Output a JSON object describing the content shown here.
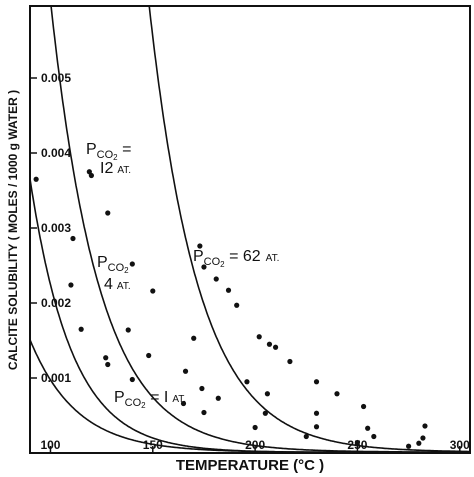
{
  "chart_data": {
    "type": "scatter",
    "title": "",
    "xlabel": "TEMPERATURE (°C )",
    "ylabel": "CALCITE SOLUBILITY ( MOLES / 1000 g WATER )",
    "xlim": [
      90,
      305
    ],
    "ylim": [
      0,
      0.00596
    ],
    "x_ticks": [
      {
        "value": 100,
        "label": "100"
      },
      {
        "value": 150,
        "label": "150"
      },
      {
        "value": 200,
        "label": "200"
      },
      {
        "value": 250,
        "label": "250"
      },
      {
        "value": 300,
        "label": "300"
      }
    ],
    "y_ticks": [
      {
        "value": 0.001,
        "label": "0.001"
      },
      {
        "value": 0.002,
        "label": "0.002"
      },
      {
        "value": 0.003,
        "label": "0.003"
      },
      {
        "value": 0.004,
        "label": "0.004"
      },
      {
        "value": 0.005,
        "label": "0.005"
      }
    ],
    "grid": false,
    "series": [
      {
        "id": "p1",
        "label": {
          "p": "P",
          "sub": "CO",
          "sub2": "2",
          "rest": " = I",
          "unit": "AT."
        },
        "curve": {
          "x0": 75,
          "A": 0.00291,
          "x1": 25,
          "x2": -48.5,
          "c0": 9e-06
        },
        "points": [
          {
            "x": 110,
            "y": 0.00224
          },
          {
            "x": 115,
            "y": 0.00165
          },
          {
            "x": 127,
            "y": 0.00127
          },
          {
            "x": 128,
            "y": 0.00118
          },
          {
            "x": 140,
            "y": 0.00098
          },
          {
            "x": 165,
            "y": 0.00066
          },
          {
            "x": 175,
            "y": 0.00054
          },
          {
            "x": 200,
            "y": 0.00034
          },
          {
            "x": 225,
            "y": 0.00022
          },
          {
            "x": 250,
            "y": 0.00014
          },
          {
            "x": 275,
            "y": 9e-05
          }
        ]
      },
      {
        "id": "p4",
        "label": {
          "p": "P",
          "sub": "CO",
          "sub2": "2",
          "rest": "",
          "unit": "AT.",
          "value": "4"
        },
        "curve": {
          "x0": 90,
          "A": 0.00365,
          "x1": 22.5,
          "x2": -45,
          "c0": 6e-06
        },
        "points": [
          {
            "x": 93,
            "y": 0.00365
          },
          {
            "x": 111,
            "y": 0.00286
          },
          {
            "x": 138,
            "y": 0.00164
          },
          {
            "x": 148,
            "y": 0.0013
          },
          {
            "x": 166,
            "y": 0.00109
          },
          {
            "x": 174,
            "y": 0.00086
          },
          {
            "x": 182,
            "y": 0.00073
          },
          {
            "x": 205,
            "y": 0.00053
          },
          {
            "x": 230,
            "y": 0.00035
          },
          {
            "x": 258,
            "y": 0.00022
          },
          {
            "x": 280,
            "y": 0.00013
          }
        ]
      },
      {
        "id": "p12",
        "label": {
          "p": "P",
          "sub": "CO",
          "sub2": "2",
          "rest": " =",
          "unit": "AT.",
          "value": "I2"
        },
        "curve": {
          "x0": 90,
          "A": 0.00918,
          "x1": 26,
          "x2": -54,
          "c0": 1.1e-05
        },
        "points": [
          {
            "x": 119,
            "y": 0.00375
          },
          {
            "x": 120,
            "y": 0.0037
          },
          {
            "x": 128,
            "y": 0.0032
          },
          {
            "x": 140,
            "y": 0.00252
          },
          {
            "x": 150,
            "y": 0.00216
          },
          {
            "x": 170,
            "y": 0.00153
          },
          {
            "x": 196,
            "y": 0.00095
          },
          {
            "x": 206,
            "y": 0.00079
          },
          {
            "x": 230,
            "y": 0.00053
          },
          {
            "x": 255,
            "y": 0.00033
          },
          {
            "x": 282,
            "y": 0.0002
          }
        ]
      },
      {
        "id": "p62",
        "label": {
          "p": "P",
          "sub": "CO",
          "sub2": "2",
          "rest": " = 62",
          "unit": "AT."
        },
        "curve": {
          "x0": 165,
          "A": 0.00298,
          "x1": 26.5,
          "x2": -56,
          "c0": 1.1e-05
        },
        "points": [
          {
            "x": 173,
            "y": 0.00276
          },
          {
            "x": 175,
            "y": 0.00248
          },
          {
            "x": 181,
            "y": 0.00232
          },
          {
            "x": 187,
            "y": 0.00217
          },
          {
            "x": 191,
            "y": 0.00197
          },
          {
            "x": 202,
            "y": 0.00155
          },
          {
            "x": 207,
            "y": 0.00145
          },
          {
            "x": 210,
            "y": 0.00141
          },
          {
            "x": 217,
            "y": 0.00122
          },
          {
            "x": 230,
            "y": 0.00095
          },
          {
            "x": 240,
            "y": 0.00079
          },
          {
            "x": 253,
            "y": 0.00062
          },
          {
            "x": 283,
            "y": 0.00036
          }
        ]
      }
    ]
  }
}
